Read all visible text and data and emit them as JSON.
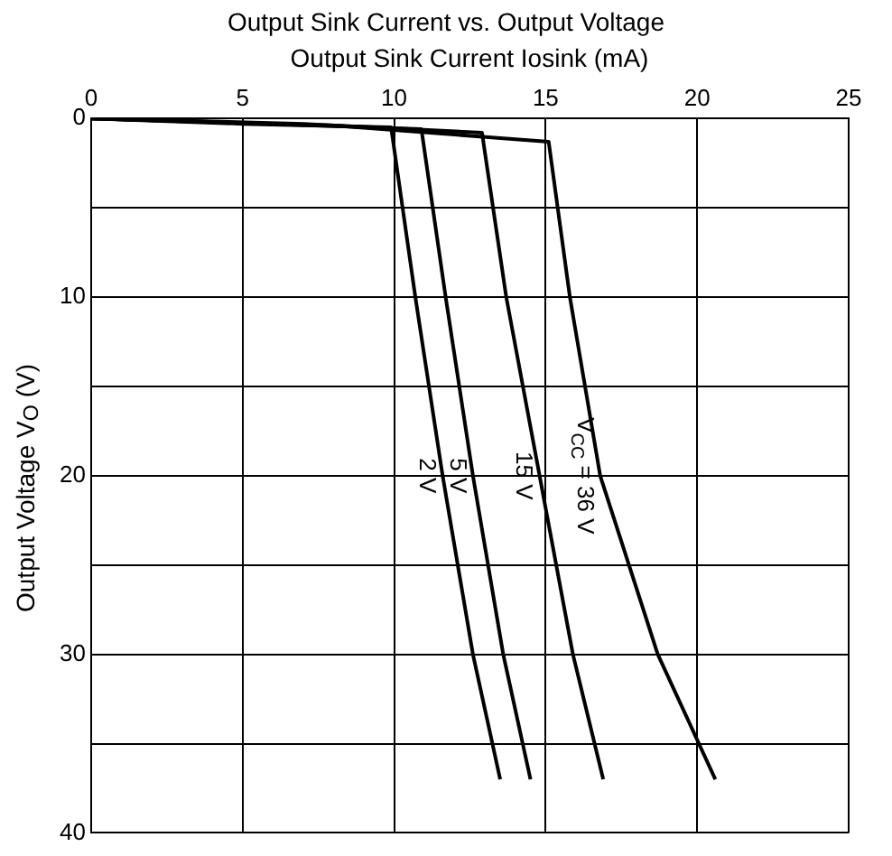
{
  "chart_data": {
    "type": "line",
    "title": "Output Sink Current vs. Output Voltage",
    "xlabel": "Output Sink Current  Iosink  (mA)",
    "ylabel": "Output Voltage  V$_{O}$  (V)",
    "xlim": [
      0,
      25
    ],
    "xticks": [
      0,
      5,
      10,
      15,
      20,
      25
    ],
    "ylim": [
      40,
      0
    ],
    "yticks": [
      0,
      {
        "value": 5,
        "label": null
      },
      10,
      {
        "value": 15,
        "label": null
      },
      20,
      {
        "value": 25,
        "label": null
      },
      30,
      {
        "value": 35,
        "label": null
      },
      40
    ],
    "grid": true,
    "legend": false,
    "marker": "none",
    "line_style": "solid",
    "series": [
      {
        "name": "V$_{CC}$ = 36 V",
        "color": "#000000",
        "x": [
          0,
          8,
          15.1,
          15.8,
          16.8,
          18.7,
          20.6
        ],
        "values": [
          0,
          0.4,
          1.3,
          10,
          20,
          30,
          37
        ]
      },
      {
        "name": "15 V",
        "color": "#000000",
        "x": [
          0,
          7,
          12.9,
          13.7,
          14.8,
          15.9,
          16.9
        ],
        "values": [
          0,
          0.3,
          0.8,
          10,
          20,
          30,
          37
        ]
      },
      {
        "name": "5 V",
        "color": "#000000",
        "x": [
          0,
          6,
          10.9,
          11.7,
          12.6,
          13.6,
          14.5
        ],
        "values": [
          0,
          0.3,
          0.6,
          10,
          20,
          30,
          37
        ]
      },
      {
        "name": "2 V",
        "color": "#000000",
        "x": [
          0,
          5,
          9.9,
          10.7,
          11.6,
          12.6,
          13.5
        ],
        "values": [
          0,
          0.3,
          0.5,
          10,
          20,
          30,
          37
        ]
      }
    ]
  }
}
